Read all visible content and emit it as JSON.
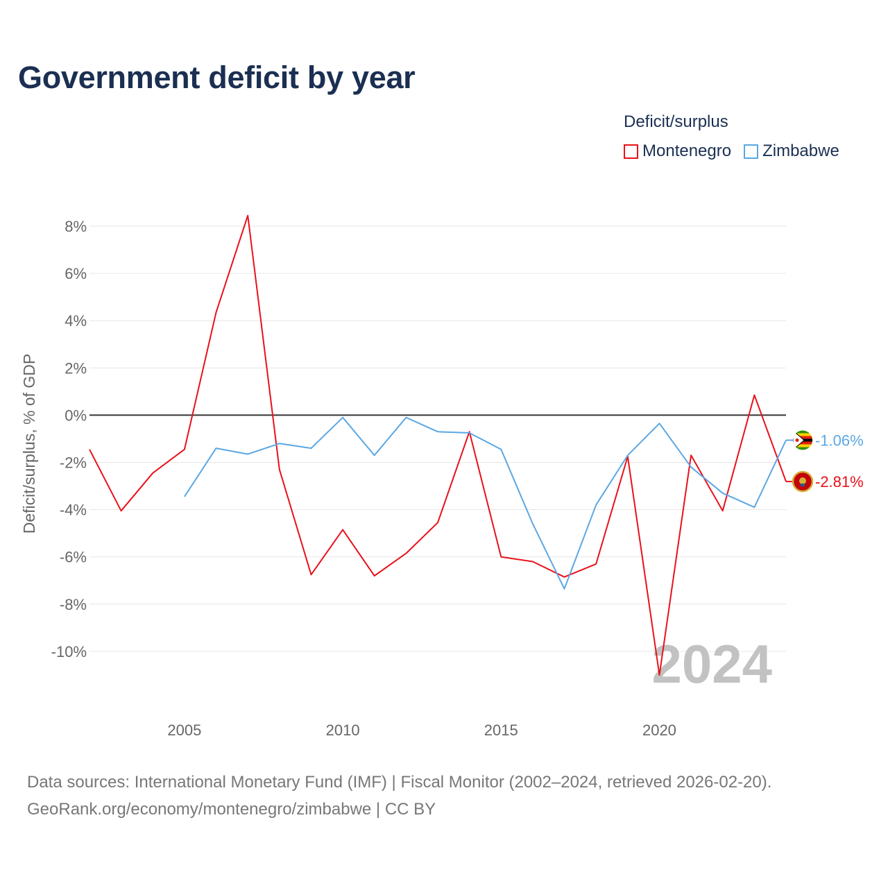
{
  "title": "Government deficit by year",
  "legend": {
    "title": "Deficit/surplus",
    "items": [
      {
        "label": "Montenegro",
        "color": "#e8111a"
      },
      {
        "label": "Zimbabwe",
        "color": "#5ba7e3"
      }
    ]
  },
  "chart_data": {
    "type": "line",
    "title": "Government deficit by year",
    "xlabel": "",
    "ylabel": "Deficit/surplus, % of GDP",
    "xlim": [
      2002,
      2024
    ],
    "ylim": [
      -12,
      9
    ],
    "x_ticks": [
      2005,
      2010,
      2015,
      2020
    ],
    "y_ticks": [
      8,
      6,
      4,
      2,
      0,
      -2,
      -4,
      -6,
      -8,
      -10
    ],
    "y_tick_labels": [
      "8%",
      "6%",
      "4%",
      "2%",
      "0%",
      "-2%",
      "-4%",
      "-6%",
      "-8%",
      "-10%"
    ],
    "year_label": "2024",
    "series": [
      {
        "name": "Montenegro",
        "color": "#e8111a",
        "x": [
          2002,
          2003,
          2004,
          2005,
          2006,
          2007,
          2008,
          2009,
          2010,
          2011,
          2012,
          2013,
          2014,
          2015,
          2016,
          2017,
          2018,
          2019,
          2020,
          2021,
          2022,
          2023,
          2024
        ],
        "values": [
          -1.45,
          -4.05,
          -2.45,
          -1.45,
          4.35,
          8.45,
          -2.3,
          -6.75,
          -4.85,
          -6.8,
          -5.85,
          -4.55,
          -0.7,
          -6.0,
          -6.2,
          -6.85,
          -6.3,
          -1.75,
          -11.0,
          -1.7,
          -4.05,
          0.85,
          -2.81
        ],
        "end_label": "-2.81%"
      },
      {
        "name": "Zimbabwe",
        "color": "#5ba7e3",
        "x": [
          2005,
          2006,
          2007,
          2008,
          2009,
          2010,
          2011,
          2012,
          2013,
          2014,
          2015,
          2016,
          2017,
          2018,
          2019,
          2020,
          2021,
          2022,
          2023,
          2024
        ],
        "values": [
          -3.45,
          -1.4,
          -1.65,
          -1.2,
          -1.4,
          -0.1,
          -1.7,
          -0.1,
          -0.7,
          -0.75,
          -1.45,
          -4.6,
          -7.35,
          -3.8,
          -1.7,
          -0.35,
          -2.2,
          -3.3,
          -3.9,
          -1.06
        ],
        "end_label": "-1.06%"
      }
    ]
  },
  "source": {
    "line1": "Data sources: International Monetary Fund (IMF) | Fiscal Monitor (2002–2024, retrieved 2026-02-20).",
    "line2": "GeoRank.org/economy/montenegro/zimbabwe | CC BY"
  }
}
